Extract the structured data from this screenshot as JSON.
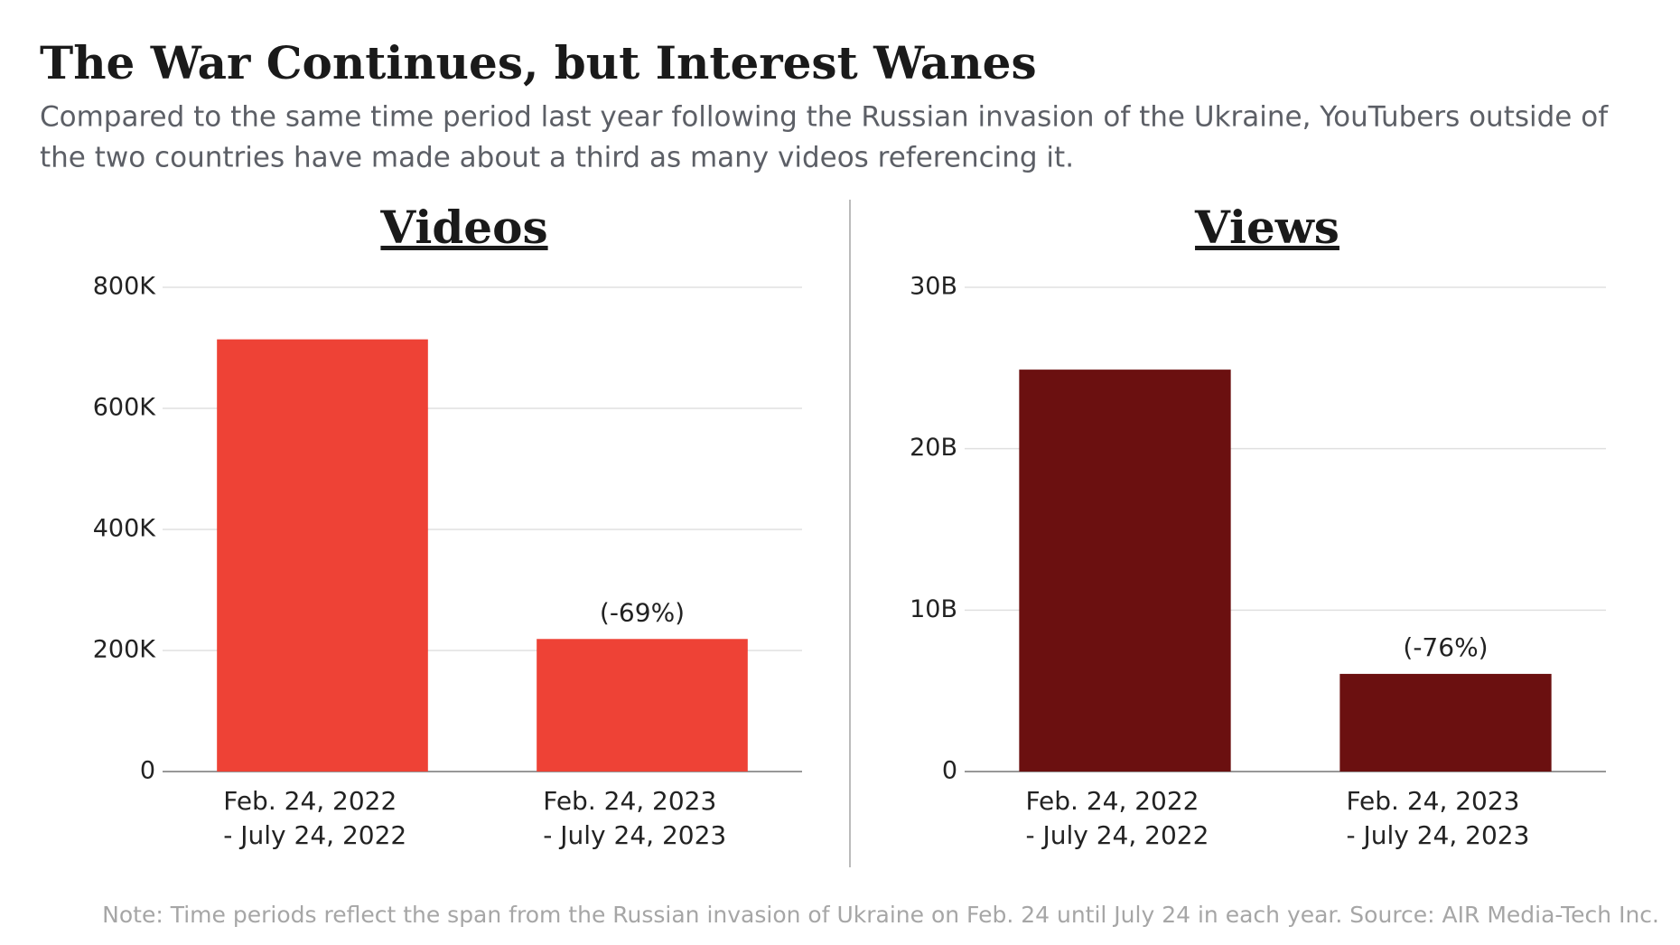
{
  "title": "The War Continues, but Interest Wanes",
  "subtitle": [
    "Compared to the same time period last year following the Russian invasion of the Ukraine, YouTubers outside of",
    "the two countries have made about a third as many videos referencing it."
  ],
  "note": "Note: Time periods reflect the span from the Russian invasion of Ukraine on Feb. 24 until July 24 in each year. Source: AIR Media-Tech Inc.",
  "chart_data": [
    {
      "type": "bar",
      "title": "Videos",
      "categories": [
        [
          "Feb. 24, 2022",
          "- July 24, 2022"
        ],
        [
          "Feb. 24, 2023",
          "- July 24, 2023"
        ]
      ],
      "values": [
        714000,
        219000
      ],
      "color": "#ee4236",
      "annotations": [
        "(-69%)"
      ],
      "ylim": [
        0,
        800000
      ],
      "yticks": [
        0,
        {
          "value": 200000,
          "label": "200K"
        },
        {
          "value": 400000,
          "label": "400K"
        },
        {
          "value": 600000,
          "label": "600K"
        },
        {
          "value": 800000,
          "label": "800K"
        }
      ],
      "grid": true
    },
    {
      "type": "bar",
      "title": "Views",
      "categories": [
        [
          "Feb. 24, 2022",
          "- July 24, 2022"
        ],
        [
          "Feb. 24, 2023",
          "- July 24, 2023"
        ]
      ],
      "values": [
        24900000000,
        6050000000
      ],
      "color": "#6b1010",
      "annotations": [
        "(-76%)"
      ],
      "ylim": [
        0,
        30000000000
      ],
      "yticks": [
        0,
        {
          "value": 10000000000,
          "label": "10B"
        },
        {
          "value": 20000000000,
          "label": "20B"
        },
        {
          "value": 30000000000,
          "label": "30B"
        }
      ],
      "grid": true
    }
  ]
}
